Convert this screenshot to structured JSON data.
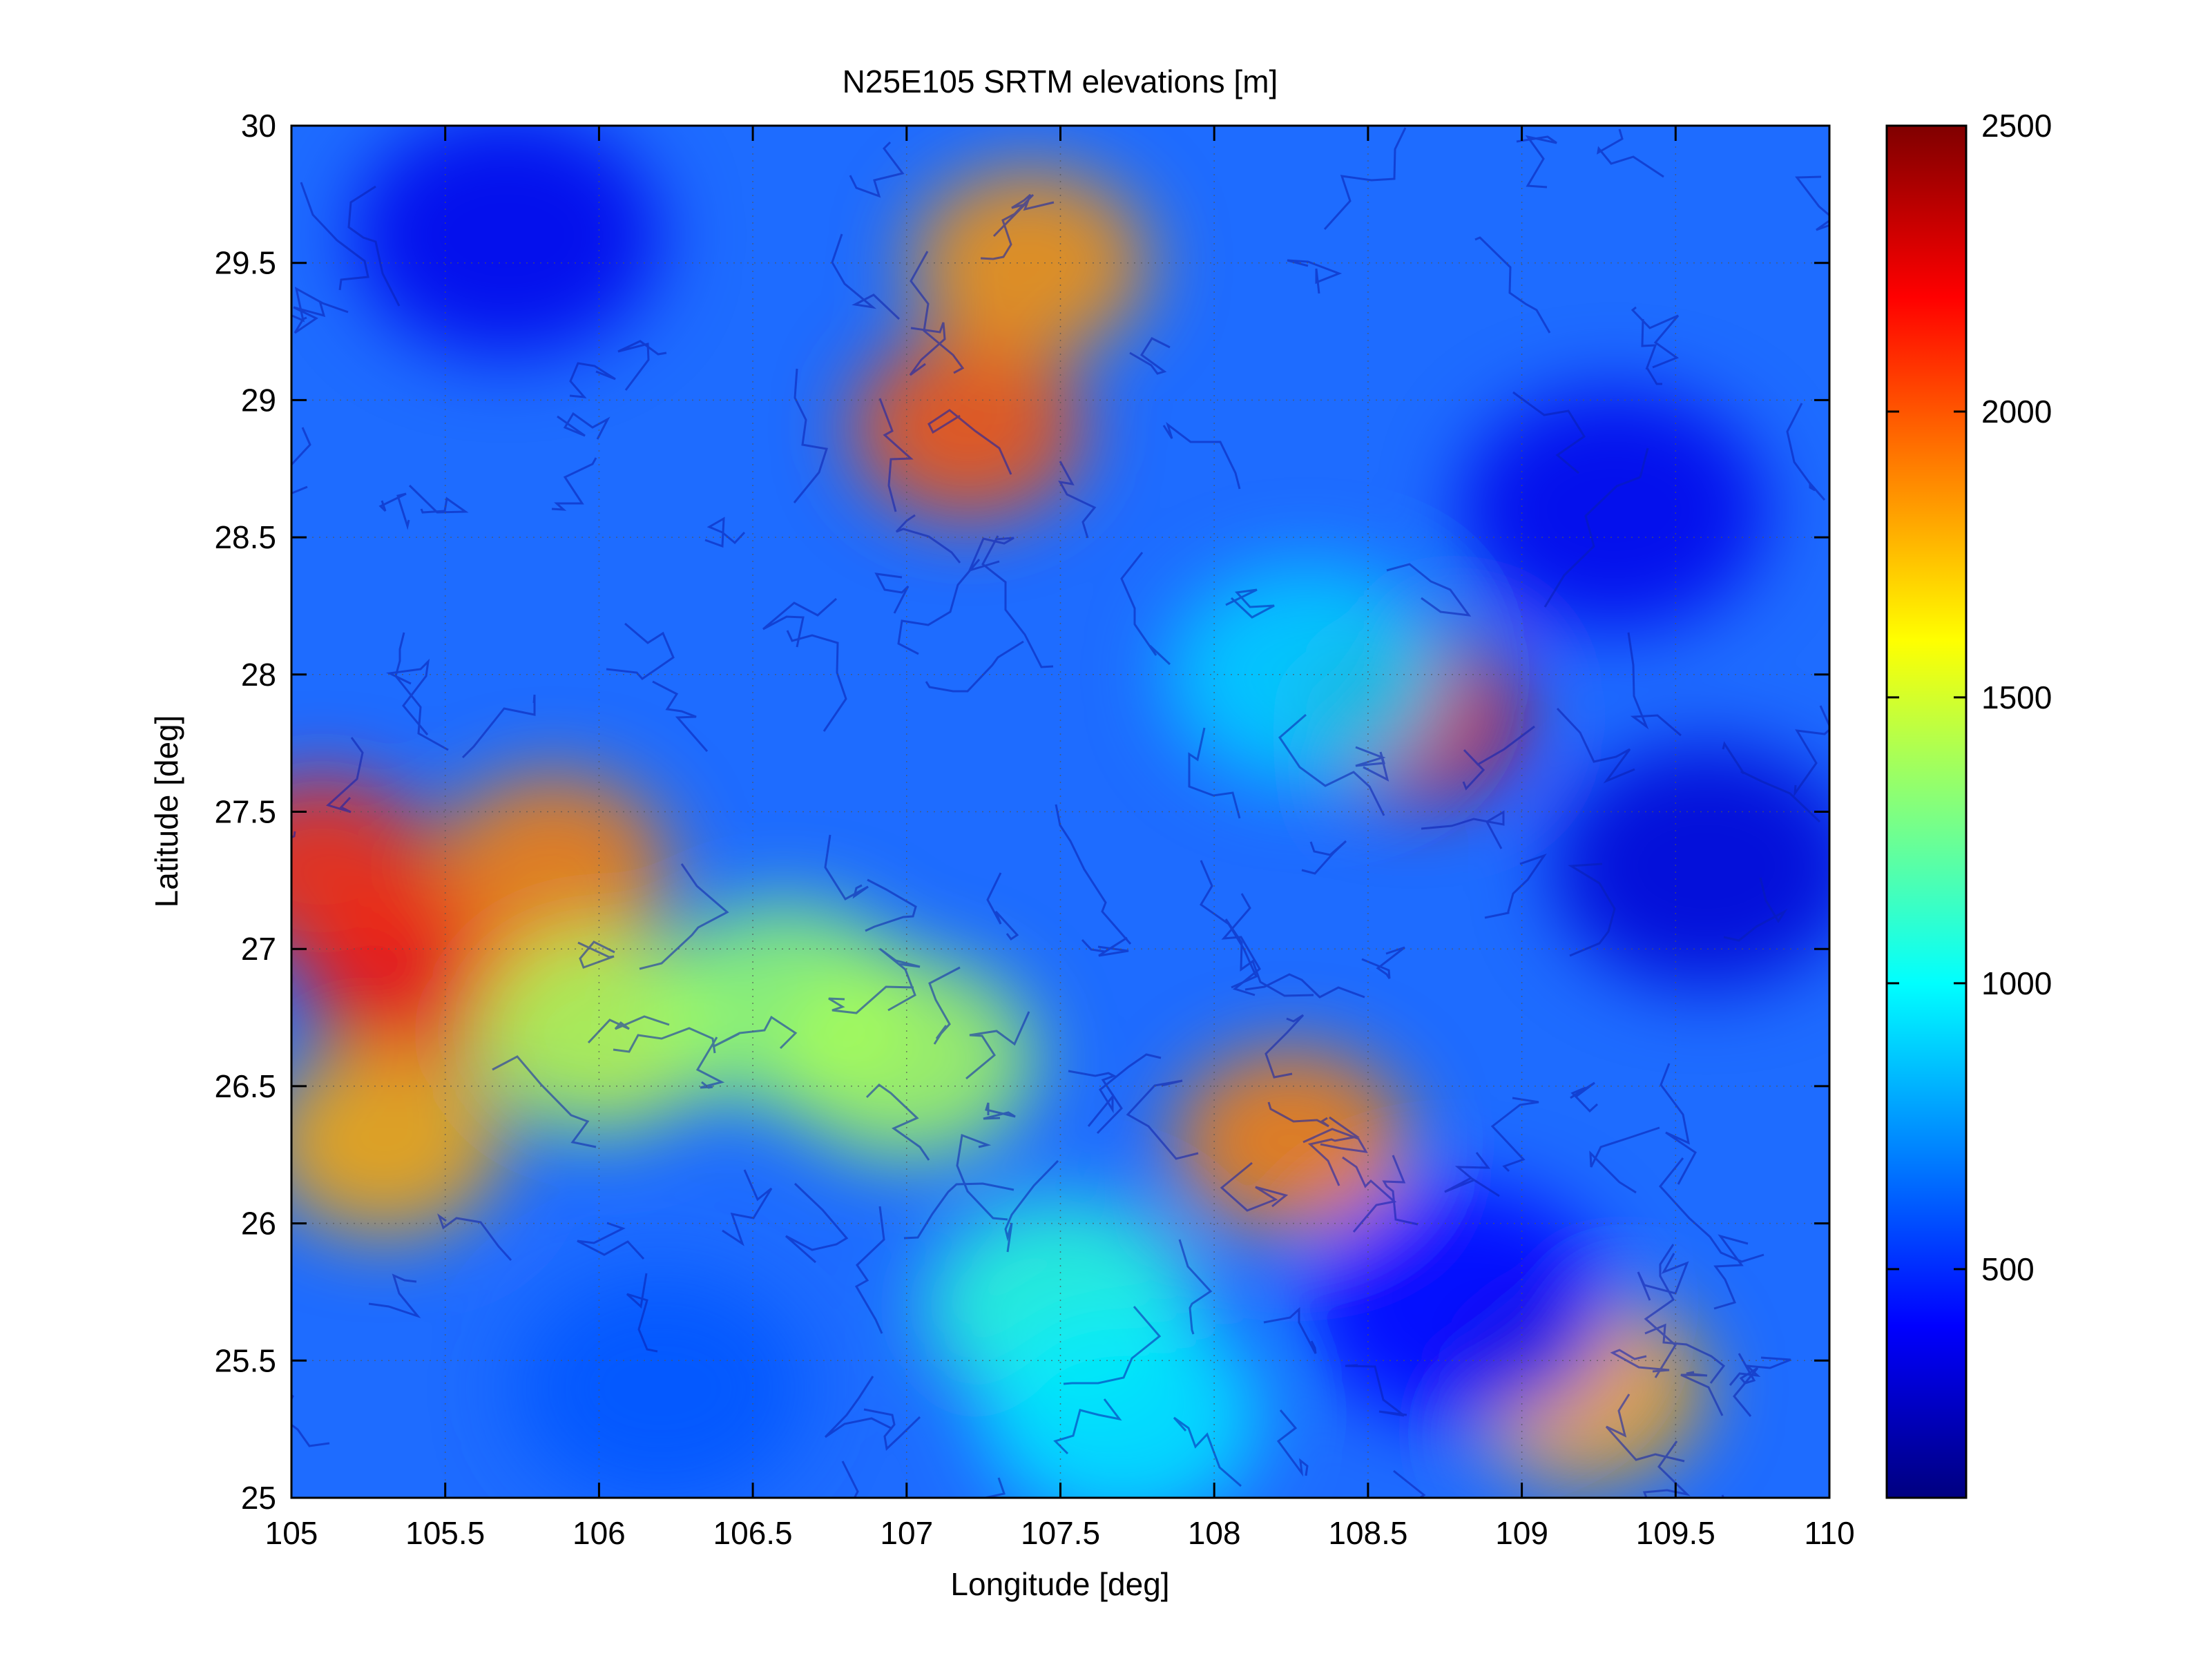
{
  "chart_data": {
    "type": "heatmap",
    "title": "N25E105 SRTM elevations [m]",
    "xlabel": "Longitude [deg]",
    "ylabel": "Latitude [deg]",
    "xlim": [
      105,
      110
    ],
    "ylim": [
      25,
      30
    ],
    "xticks": [
      105,
      105.5,
      106,
      106.5,
      107,
      107.5,
      108,
      108.5,
      109,
      109.5,
      110
    ],
    "xtick_labels": [
      "105",
      "105.5",
      "106",
      "106.5",
      "107",
      "107.5",
      "108",
      "108.5",
      "109",
      "109.5",
      "110"
    ],
    "yticks": [
      25,
      25.5,
      26,
      26.5,
      27,
      27.5,
      28,
      28.5,
      29,
      29.5,
      30
    ],
    "ytick_labels": [
      "25",
      "25.5",
      "26",
      "26.5",
      "27",
      "27.5",
      "28",
      "28.5",
      "29",
      "29.5",
      "30"
    ],
    "grid": true,
    "colormap": "jet",
    "clim": [
      100,
      2500
    ],
    "colorbar_ticks": [
      500,
      1000,
      1500,
      2000,
      2500
    ],
    "colorbar_tick_labels": [
      "500",
      "1000",
      "1500",
      "2000",
      "2500"
    ],
    "colorbar_location": "right",
    "features": [
      {
        "lon": 105.4,
        "lat": 26.9,
        "elevation": 2200
      },
      {
        "lon": 105.1,
        "lat": 27.3,
        "elevation": 2100
      },
      {
        "lon": 105.85,
        "lat": 27.3,
        "elevation": 1900
      },
      {
        "lon": 105.3,
        "lat": 26.3,
        "elevation": 1800
      },
      {
        "lon": 106.0,
        "lat": 26.7,
        "elevation": 1450
      },
      {
        "lon": 106.6,
        "lat": 26.8,
        "elevation": 1350
      },
      {
        "lon": 107.0,
        "lat": 26.6,
        "elevation": 1400
      },
      {
        "lon": 107.2,
        "lat": 28.9,
        "elevation": 2000
      },
      {
        "lon": 107.4,
        "lat": 29.5,
        "elevation": 1850
      },
      {
        "lon": 108.65,
        "lat": 27.85,
        "elevation": 2300
      },
      {
        "lon": 108.25,
        "lat": 26.3,
        "elevation": 1900
      },
      {
        "lon": 109.2,
        "lat": 25.4,
        "elevation": 1800
      },
      {
        "lon": 107.5,
        "lat": 25.7,
        "elevation": 1100
      },
      {
        "lon": 107.7,
        "lat": 25.3,
        "elevation": 950
      },
      {
        "lon": 108.3,
        "lat": 28.0,
        "elevation": 900
      },
      {
        "lon": 109.6,
        "lat": 27.3,
        "elevation": 300
      },
      {
        "lon": 109.3,
        "lat": 28.6,
        "elevation": 350
      },
      {
        "lon": 108.8,
        "lat": 25.7,
        "elevation": 400
      },
      {
        "lon": 105.7,
        "lat": 29.6,
        "elevation": 350
      },
      {
        "lon": 106.2,
        "lat": 25.4,
        "elevation": 600
      }
    ]
  }
}
